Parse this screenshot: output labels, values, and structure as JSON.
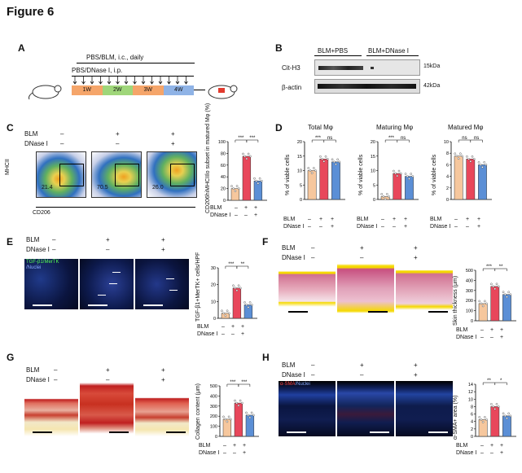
{
  "figure_title": "Figure 6",
  "panels": {
    "A": {
      "label": "A",
      "line1": "PBS/BLM, i.c., daily",
      "line2": "PBS/DNase I, i.p.",
      "weeks": [
        "1W",
        "2W",
        "3W",
        "4W"
      ]
    },
    "B": {
      "label": "B",
      "headers": [
        "BLM+PBS",
        "BLM+DNase I"
      ],
      "rows": [
        "Cit-H3",
        "β-actin"
      ],
      "sizes": [
        "15kDa",
        "42kDa"
      ]
    },
    "C": {
      "label": "C",
      "row_blm": "BLM",
      "row_dnase": "DNase I",
      "blm_marks": [
        "–",
        "+",
        "+"
      ],
      "dnase_marks": [
        "–",
        "–",
        "+"
      ],
      "percents": [
        "21.4",
        "70.5",
        "26.0"
      ],
      "ylabel_flow": "MHCII",
      "xlabel_flow": "CD206",
      "axis_ticks": [
        "10⁵",
        "10⁴",
        "10³",
        "0"
      ],
      "axis_ticks_x": [
        "0",
        "10³",
        "10⁴",
        "10⁵"
      ],
      "ylabel": "CD206hiMHCIIlo subset in matured Mφ (%)",
      "yticks": [
        "100",
        "80",
        "60",
        "40",
        "20",
        "0"
      ],
      "sig": [
        "***",
        "***"
      ]
    },
    "D": {
      "label": "D",
      "titles": [
        "Total Mφ",
        "Maturing Mφ",
        "Matured Mφ"
      ],
      "ylabel": "% of viable cells",
      "yticks": [
        [
          "20",
          "15",
          "10",
          "5",
          "0"
        ],
        [
          "20",
          "15",
          "10",
          "5",
          "0"
        ],
        [
          "10",
          "8",
          "6",
          "4",
          "2",
          "0"
        ]
      ],
      "sig": [
        [
          "***",
          "ns"
        ],
        [
          "***",
          "ns"
        ],
        [
          "ns",
          "ns"
        ]
      ]
    },
    "E": {
      "label": "E",
      "stain": "TGF-β1/MerTK",
      "stain2": "/Nuclei",
      "ylabel": "TGF-β1+MerTK+ cells/HPF",
      "yticks": [
        "30",
        "20",
        "10",
        "0"
      ],
      "sig": [
        "***",
        "**"
      ]
    },
    "F": {
      "label": "F",
      "ylabel": "Skin thickness (μm)",
      "yticks": [
        "500",
        "400",
        "300",
        "200",
        "100",
        "0"
      ],
      "sig": [
        "***",
        "**"
      ]
    },
    "G": {
      "label": "G",
      "ylabel": "Collagen content (μm)",
      "yticks": [
        "500",
        "400",
        "300",
        "200",
        "100",
        "0"
      ],
      "sig": [
        "***",
        "***"
      ]
    },
    "H": {
      "label": "H",
      "stain": "α-SMA",
      "stain2": "/Nuclei",
      "ylabel": "α-SMA+ area (%)",
      "yticks": [
        "14",
        "12",
        "10",
        "8",
        "6",
        "4",
        "2",
        "0"
      ],
      "sig": [
        "**",
        "*"
      ]
    }
  },
  "legend_rows": {
    "blm": "BLM",
    "dnase": "DNase I",
    "blm_marks": [
      "–",
      "+",
      "+"
    ],
    "dnase_marks": [
      "–",
      "–",
      "+"
    ]
  },
  "chart_data": [
    {
      "type": "bar",
      "panel": "C",
      "categories": [
        "PBS",
        "BLM",
        "BLM+DNase I"
      ],
      "values": [
        20,
        75,
        33
      ],
      "ylim": [
        0,
        100
      ],
      "ylabel": "CD206hiMHCIIlo subset in matured Mφ (%)",
      "colors": [
        "#f6c79d",
        "#e8475b",
        "#5b8fd6"
      ]
    },
    {
      "type": "bar",
      "panel": "D-total",
      "categories": [
        "PBS",
        "BLM",
        "BLM+DNase I"
      ],
      "values": [
        10,
        14,
        13
      ],
      "ylim": [
        0,
        20
      ],
      "title": "Total Mφ",
      "ylabel": "% of viable cells"
    },
    {
      "type": "bar",
      "panel": "D-maturing",
      "categories": [
        "PBS",
        "BLM",
        "BLM+DNase I"
      ],
      "values": [
        1,
        9,
        8
      ],
      "ylim": [
        0,
        20
      ],
      "title": "Maturing Mφ",
      "ylabel": "% of viable cells"
    },
    {
      "type": "bar",
      "panel": "D-matured",
      "categories": [
        "PBS",
        "BLM",
        "BLM+DNase I"
      ],
      "values": [
        7.5,
        7,
        6
      ],
      "ylim": [
        0,
        10
      ],
      "title": "Matured Mφ",
      "ylabel": "% of viable cells"
    },
    {
      "type": "bar",
      "panel": "E",
      "categories": [
        "PBS",
        "BLM",
        "BLM+DNase I"
      ],
      "values": [
        3,
        18,
        8
      ],
      "ylim": [
        0,
        30
      ],
      "ylabel": "TGF-β1+MerTK+ cells/HPF"
    },
    {
      "type": "bar",
      "panel": "F",
      "categories": [
        "PBS",
        "BLM",
        "BLM+DNase I"
      ],
      "values": [
        170,
        340,
        260
      ],
      "ylim": [
        0,
        500
      ],
      "ylabel": "Skin thickness (μm)"
    },
    {
      "type": "bar",
      "panel": "G",
      "categories": [
        "PBS",
        "BLM",
        "BLM+DNase I"
      ],
      "values": [
        170,
        330,
        210
      ],
      "ylim": [
        0,
        500
      ],
      "ylabel": "Collagen content (μm)"
    },
    {
      "type": "bar",
      "panel": "H",
      "categories": [
        "PBS",
        "BLM",
        "BLM+DNase I"
      ],
      "values": [
        4.5,
        8,
        5.5
      ],
      "ylim": [
        0,
        14
      ],
      "ylabel": "α-SMA+ area (%)"
    }
  ]
}
